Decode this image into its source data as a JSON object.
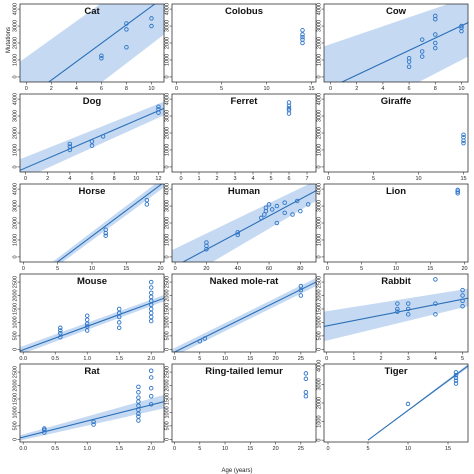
{
  "figure": {
    "xlabel": "Age (years)",
    "ylabel": "Mutations",
    "colors": {
      "band": "#c5daf2",
      "line": "#2b6fb8",
      "point": "#2e75c7",
      "frame": "#333333"
    }
  },
  "chart_data": [
    {
      "type": "scatter",
      "title": "Cat",
      "xlim": [
        -0.5,
        11
      ],
      "ylim": [
        -300,
        4300
      ],
      "xticks": [
        "0",
        "2",
        "4",
        "6",
        "8",
        "10"
      ],
      "yticks": [
        "0",
        "1000",
        "2000",
        "3000",
        "4000"
      ],
      "points": [
        [
          6,
          1100
        ],
        [
          6,
          1250
        ],
        [
          8,
          1750
        ],
        [
          8,
          2800
        ],
        [
          8,
          3150
        ],
        [
          10,
          3000
        ],
        [
          10,
          3450
        ]
      ],
      "fit": [
        [
          -0.5,
          -1550
        ],
        [
          11,
          4700
        ]
      ],
      "band_ends": {
        "left": [
          -4000,
          900
        ],
        "right": [
          2500,
          7000
        ]
      }
    },
    {
      "type": "scatter",
      "title": "Colobus",
      "xlim": [
        -0.5,
        15.5
      ],
      "ylim": [
        -300,
        4300
      ],
      "xticks": [
        "0",
        "5",
        "10",
        "15"
      ],
      "yticks": [
        "0",
        "1000",
        "2000",
        "3000",
        "4000"
      ],
      "points": [
        [
          14,
          2000
        ],
        [
          14,
          2200
        ],
        [
          14,
          2350
        ],
        [
          14,
          2500
        ],
        [
          14,
          2750
        ]
      ],
      "fit": null
    },
    {
      "type": "scatter",
      "title": "Cow",
      "xlim": [
        -0.5,
        10.5
      ],
      "ylim": [
        -300,
        4300
      ],
      "xticks": [
        "0",
        "2",
        "4",
        "6",
        "8",
        "10"
      ],
      "yticks": [
        "0",
        "1000",
        "2000",
        "3000",
        "4000"
      ],
      "points": [
        [
          6,
          600
        ],
        [
          6,
          900
        ],
        [
          6,
          1100
        ],
        [
          7,
          1200
        ],
        [
          7,
          1500
        ],
        [
          7,
          2200
        ],
        [
          8,
          1700
        ],
        [
          8,
          2000
        ],
        [
          8,
          2500
        ],
        [
          8,
          3400
        ],
        [
          8,
          3600
        ],
        [
          10,
          2700
        ],
        [
          10,
          2900
        ],
        [
          10,
          3000
        ]
      ],
      "fit": [
        [
          -0.5,
          -800
        ],
        [
          10.5,
          3200
        ]
      ],
      "band_ends": {
        "left": [
          -3200,
          1800
        ],
        "right": [
          1200,
          4700
        ]
      }
    },
    {
      "type": "scatter",
      "title": "Dog",
      "xlim": [
        -0.5,
        12.5
      ],
      "ylim": [
        -300,
        4300
      ],
      "xticks": [
        "0",
        "2",
        "4",
        "6",
        "8",
        "10",
        "12"
      ],
      "yticks": [
        "0",
        "1000",
        "2000",
        "3000",
        "4000"
      ],
      "points": [
        [
          4,
          1000
        ],
        [
          4,
          1200
        ],
        [
          4,
          1350
        ],
        [
          6,
          1250
        ],
        [
          6,
          1500
        ],
        [
          7,
          1800
        ],
        [
          12,
          3200
        ],
        [
          12,
          3400
        ],
        [
          12,
          3550
        ]
      ],
      "fit": [
        [
          -0.5,
          -200
        ],
        [
          12.5,
          3450
        ]
      ],
      "band_ends": {
        "left": [
          -800,
          450
        ],
        "right": [
          3050,
          3850
        ]
      }
    },
    {
      "type": "scatter",
      "title": "Ferret",
      "xlim": [
        -0.5,
        7.5
      ],
      "ylim": [
        -300,
        4300
      ],
      "xticks": [
        "0",
        "1",
        "2",
        "3",
        "4",
        "5",
        "6",
        "7"
      ],
      "yticks": [
        "0",
        "1000",
        "2000",
        "3000",
        "4000"
      ],
      "points": [
        [
          6,
          3150
        ],
        [
          6,
          3350
        ],
        [
          6,
          3450
        ],
        [
          6,
          3600
        ],
        [
          6,
          3800
        ]
      ],
      "fit": null
    },
    {
      "type": "scatter",
      "title": "Giraffe",
      "xlim": [
        -0.5,
        15.5
      ],
      "ylim": [
        -300,
        4300
      ],
      "xticks": [
        "0",
        "5",
        "10",
        "15"
      ],
      "yticks": [
        "0",
        "1000",
        "2000",
        "3000",
        "4000"
      ],
      "points": [
        [
          15,
          1400
        ],
        [
          15,
          1550
        ],
        [
          15,
          1750
        ],
        [
          15,
          1900
        ]
      ],
      "fit": null
    },
    {
      "type": "scatter",
      "title": "Horse",
      "xlim": [
        -0.5,
        20.5
      ],
      "ylim": [
        -300,
        4300
      ],
      "xticks": [
        "0",
        "5",
        "10",
        "15",
        "20"
      ],
      "yticks": [
        "0",
        "1000",
        "2000",
        "3000",
        "4000"
      ],
      "points": [
        [
          12,
          1250
        ],
        [
          12,
          1400
        ],
        [
          12,
          1600
        ],
        [
          18,
          3100
        ],
        [
          18,
          3350
        ]
      ],
      "fit": [
        [
          -0.5,
          -1950
        ],
        [
          20.5,
          4400
        ]
      ],
      "band_ends": {
        "left": [
          -2150,
          -1750
        ],
        "right": [
          4100,
          4700
        ]
      }
    },
    {
      "type": "scatter",
      "title": "Human",
      "xlim": [
        -2,
        90
      ],
      "ylim": [
        -300,
        4300
      ],
      "xticks": [
        "0",
        "20",
        "40",
        "60",
        "80"
      ],
      "yticks": [
        "0",
        "1000",
        "2000",
        "3000",
        "4000"
      ],
      "points": [
        [
          20,
          450
        ],
        [
          20,
          650
        ],
        [
          20,
          850
        ],
        [
          40,
          1300
        ],
        [
          40,
          1450
        ],
        [
          55,
          2300
        ],
        [
          57,
          2500
        ],
        [
          58,
          2700
        ],
        [
          58,
          2900
        ],
        [
          60,
          3100
        ],
        [
          62,
          2800
        ],
        [
          65,
          3000
        ],
        [
          65,
          2000
        ],
        [
          70,
          2600
        ],
        [
          70,
          3200
        ],
        [
          75,
          2500
        ],
        [
          78,
          3300
        ],
        [
          80,
          2700
        ],
        [
          85,
          3100
        ]
      ],
      "fit": [
        [
          -2,
          -650
        ],
        [
          90,
          3900
        ]
      ],
      "band_ends": {
        "left": [
          -1700,
          400
        ],
        "right": [
          3300,
          4500
        ]
      }
    },
    {
      "type": "scatter",
      "title": "Lion",
      "xlim": [
        -0.5,
        20.5
      ],
      "ylim": [
        -300,
        4300
      ],
      "xticks": [
        "0",
        "5",
        "10",
        "15",
        "20"
      ],
      "yticks": [
        "0",
        "1000",
        "2000",
        "3000",
        "4000"
      ],
      "points": [
        [
          19,
          3750
        ],
        [
          19,
          3850
        ],
        [
          19,
          3950
        ]
      ],
      "fit": null
    },
    {
      "type": "scatter",
      "title": "Mouse",
      "xlim": [
        -0.05,
        2.2
      ],
      "ylim": [
        -100,
        2800
      ],
      "xticks": [
        "0.0",
        "0.5",
        "1.0",
        "1.5",
        "2.0"
      ],
      "yticks": [
        "0",
        "500",
        "1000",
        "1500",
        "2000",
        "2500"
      ],
      "points": [
        [
          0.58,
          450
        ],
        [
          0.58,
          600
        ],
        [
          0.58,
          700
        ],
        [
          0.58,
          800
        ],
        [
          1.0,
          700
        ],
        [
          1.0,
          850
        ],
        [
          1.0,
          950
        ],
        [
          1.0,
          1100
        ],
        [
          1.0,
          1250
        ],
        [
          1.5,
          800
        ],
        [
          1.5,
          1000
        ],
        [
          1.5,
          1200
        ],
        [
          1.5,
          1350
        ],
        [
          1.5,
          1500
        ],
        [
          2.0,
          1050
        ],
        [
          2.0,
          1200
        ],
        [
          2.0,
          1350
        ],
        [
          2.0,
          1500
        ],
        [
          2.0,
          1650
        ],
        [
          2.0,
          1800
        ],
        [
          2.0,
          1950
        ],
        [
          2.0,
          2100
        ],
        [
          2.0,
          2300
        ],
        [
          2.0,
          2500
        ]
      ],
      "fit": [
        [
          -0.05,
          -60
        ],
        [
          2.2,
          1900
        ]
      ],
      "band_ends": {
        "left": [
          -200,
          80
        ],
        "right": [
          1780,
          2020
        ]
      }
    },
    {
      "type": "scatter",
      "title": "Naked mole-rat",
      "xlim": [
        -0.5,
        28
      ],
      "ylim": [
        -100,
        2800
      ],
      "xticks": [
        "0",
        "5",
        "10",
        "15",
        "20",
        "25"
      ],
      "yticks": [
        "0",
        "500",
        "1000",
        "1500",
        "2000",
        "2500"
      ],
      "points": [
        [
          5,
          300
        ],
        [
          6,
          400
        ],
        [
          25,
          2000
        ],
        [
          25,
          2200
        ],
        [
          25,
          2350
        ]
      ],
      "fit": [
        [
          -0.5,
          -150
        ],
        [
          28,
          2500
        ]
      ],
      "band_ends": {
        "left": [
          -300,
          0
        ],
        "right": [
          2350,
          2650
        ]
      }
    },
    {
      "type": "scatter",
      "title": "Rabbit",
      "xlim": [
        -0.1,
        5.2
      ],
      "ylim": [
        -100,
        2800
      ],
      "xticks": [
        "0",
        "1",
        "2",
        "3",
        "4",
        "5"
      ],
      "yticks": [
        "0",
        "500",
        "1000",
        "1500",
        "2000",
        "2500"
      ],
      "points": [
        [
          2.6,
          1400
        ],
        [
          2.6,
          1500
        ],
        [
          2.6,
          1700
        ],
        [
          3.0,
          1300
        ],
        [
          3.0,
          1500
        ],
        [
          3.0,
          1700
        ],
        [
          4.0,
          1300
        ],
        [
          4.0,
          1700
        ],
        [
          4.0,
          2600
        ],
        [
          5.0,
          1600
        ],
        [
          5.0,
          1800
        ],
        [
          5.0,
          2000
        ],
        [
          5.0,
          2200
        ]
      ],
      "fit": [
        [
          -0.1,
          850
        ],
        [
          5.2,
          1900
        ]
      ],
      "band_ends": {
        "left": [
          300,
          1400
        ],
        "right": [
          1600,
          2250
        ]
      }
    },
    {
      "type": "scatter",
      "title": "Rat",
      "xlim": [
        -0.05,
        2.2
      ],
      "ylim": [
        -100,
        2800
      ],
      "xticks": [
        "0.0",
        "0.5",
        "1.0",
        "1.5",
        "2.0"
      ],
      "yticks": [
        "0",
        "500",
        "1000",
        "1500",
        "2000",
        "2500"
      ],
      "points": [
        [
          0.33,
          250
        ],
        [
          0.33,
          350
        ],
        [
          0.33,
          400
        ],
        [
          1.1,
          550
        ],
        [
          1.1,
          650
        ],
        [
          1.8,
          700
        ],
        [
          1.8,
          850
        ],
        [
          1.8,
          950
        ],
        [
          1.8,
          1100
        ],
        [
          1.8,
          1250
        ],
        [
          1.8,
          1400
        ],
        [
          1.8,
          1550
        ],
        [
          1.8,
          1750
        ],
        [
          1.8,
          1950
        ],
        [
          2.0,
          1300
        ],
        [
          2.0,
          1600
        ],
        [
          2.0,
          1900
        ],
        [
          2.0,
          2300
        ],
        [
          2.0,
          2550
        ]
      ],
      "fit": [
        [
          -0.05,
          50
        ],
        [
          2.2,
          1400
        ]
      ],
      "band_ends": {
        "left": [
          -50,
          150
        ],
        "right": [
          1150,
          1650
        ]
      }
    },
    {
      "type": "scatter",
      "title": "Ring-tailed lemur",
      "xlim": [
        -0.5,
        28
      ],
      "ylim": [
        -100,
        2800
      ],
      "xticks": [
        "0",
        "5",
        "10",
        "15",
        "20",
        "25"
      ],
      "yticks": [
        "0",
        "500",
        "1000",
        "1500",
        "2000",
        "2500"
      ],
      "points": [
        [
          26,
          1600
        ],
        [
          26,
          1750
        ],
        [
          26,
          2250
        ],
        [
          26,
          2450
        ]
      ],
      "fit": null
    },
    {
      "type": "scatter",
      "title": "Tiger",
      "xlim": [
        -0.5,
        17.5
      ],
      "ylim": [
        -100,
        4100
      ],
      "xticks": [
        "0",
        "5",
        "10",
        "15"
      ],
      "yticks": [
        "0",
        "1000",
        "2000",
        "3000",
        "4000"
      ],
      "points": [
        [
          10,
          1950
        ],
        [
          16,
          3050
        ],
        [
          16,
          3200
        ],
        [
          16,
          3350
        ],
        [
          16,
          3500
        ],
        [
          16,
          3650
        ]
      ],
      "fit": [
        [
          5,
          0
        ],
        [
          17.5,
          4000
        ]
      ],
      "band_ends": {
        "left": [
          0,
          0
        ],
        "right": [
          3900,
          4100
        ]
      }
    }
  ]
}
